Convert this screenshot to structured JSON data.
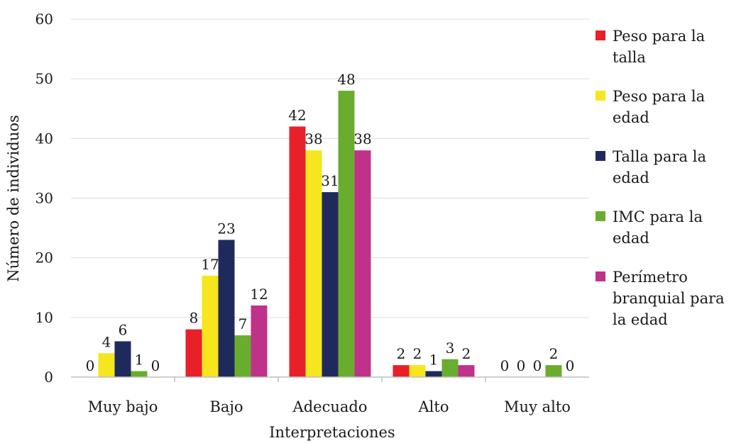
{
  "chart_data": {
    "type": "bar",
    "xlabel": "Interpretaciones",
    "ylabel": "Número de individuos",
    "ylim": [
      0,
      60
    ],
    "yticks": [
      0,
      10,
      20,
      30,
      40,
      50,
      60
    ],
    "grid": true,
    "legend_position": "right",
    "categories": [
      "Muy bajo",
      "Bajo",
      "Adecuado",
      "Alto",
      "Muy alto"
    ],
    "series": [
      {
        "name": "Peso para la talla",
        "color": "#e8202a",
        "values": [
          0,
          8,
          42,
          2,
          0
        ]
      },
      {
        "name": "Peso para la edad",
        "color": "#f5e61e",
        "values": [
          4,
          17,
          38,
          2,
          0
        ]
      },
      {
        "name": "Talla para la edad",
        "color": "#1f2a5c",
        "values": [
          6,
          23,
          31,
          1,
          0
        ]
      },
      {
        "name": "IMC para la edad",
        "color": "#6aad2e",
        "values": [
          1,
          7,
          48,
          3,
          2
        ]
      },
      {
        "name": "Perímetro branquial para la edad",
        "color": "#c0328a",
        "values": [
          0,
          12,
          38,
          2,
          0
        ]
      }
    ]
  }
}
